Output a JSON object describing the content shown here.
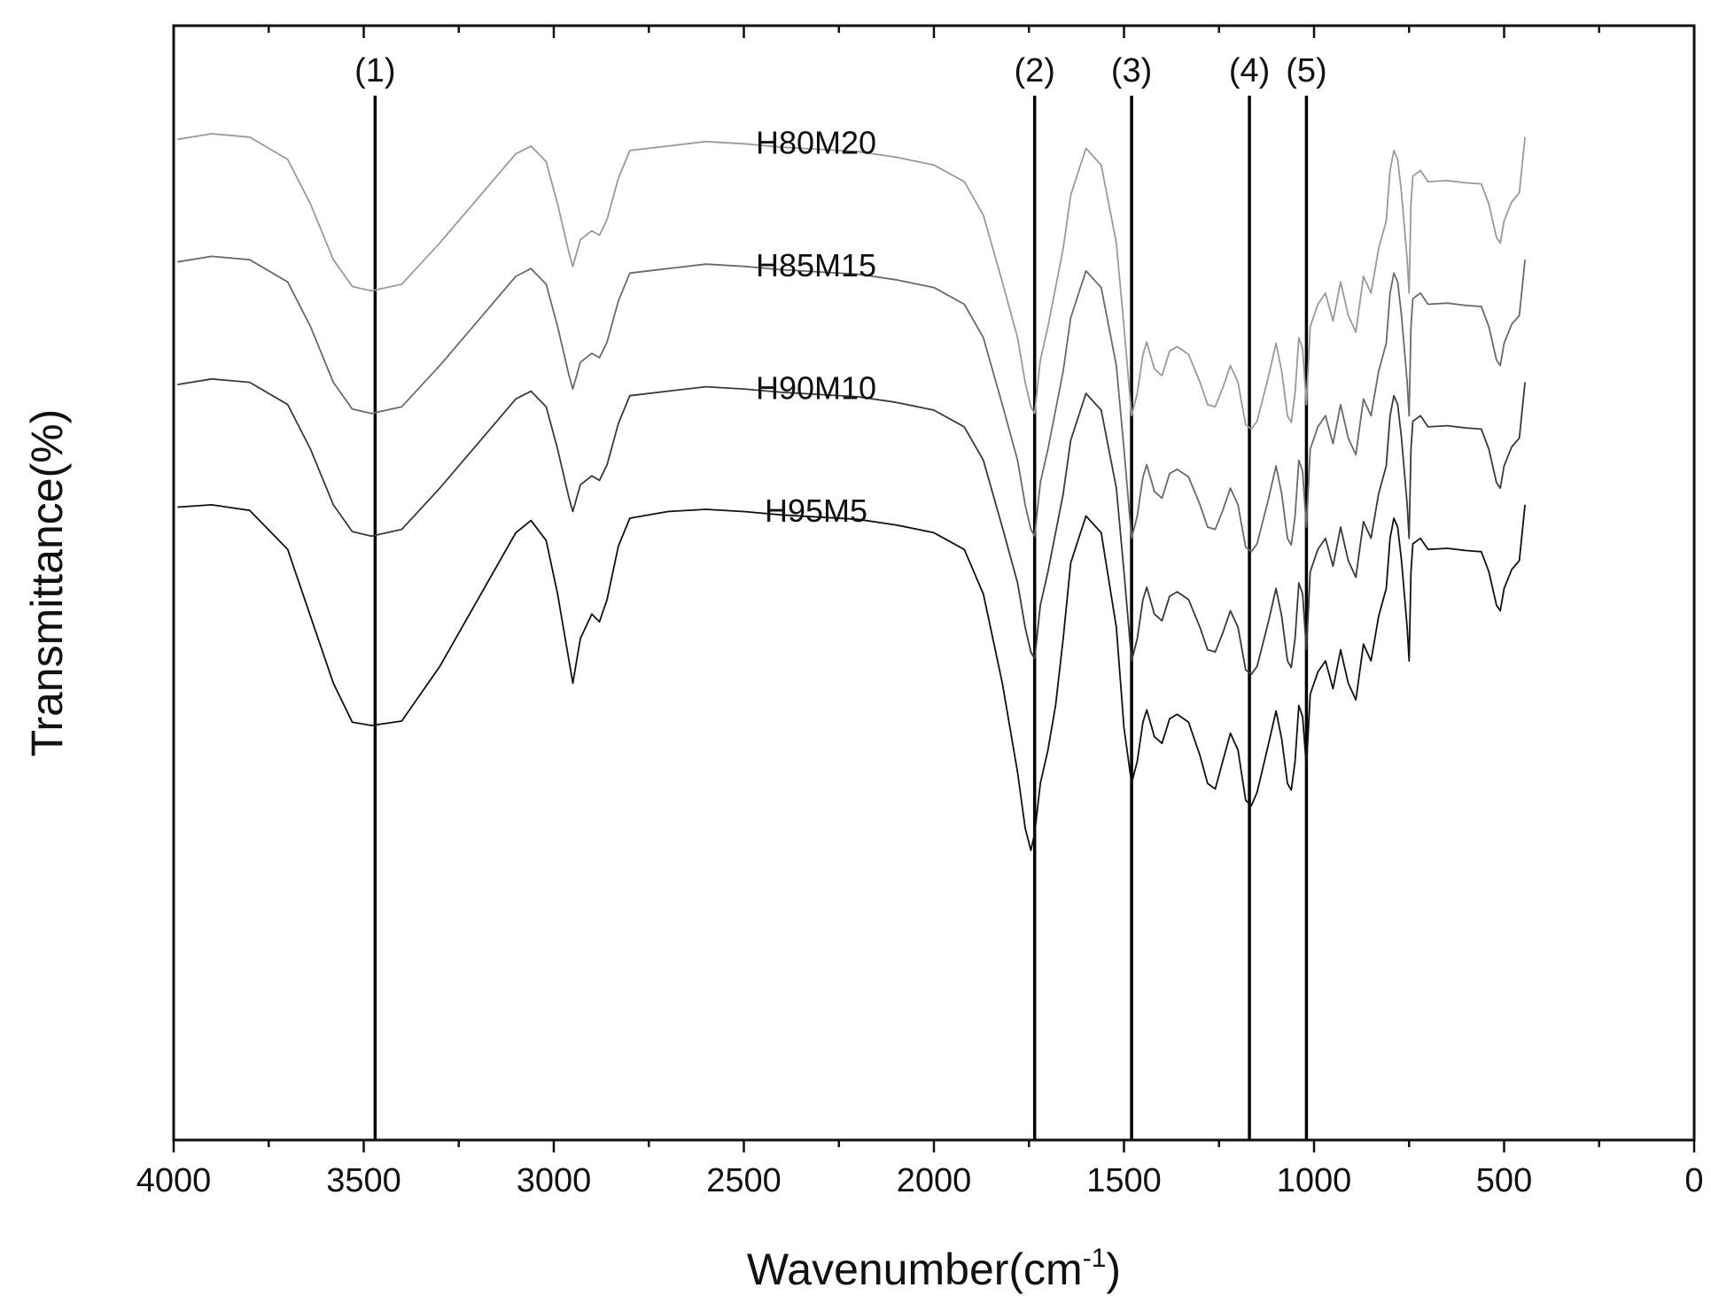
{
  "chart_data": {
    "type": "line",
    "xlabel": "Wavenumber(cm",
    "xlabel_sup": "-1",
    "xlabel_end": ")",
    "ylabel": "Transmittance(%)",
    "xlim": [
      4000,
      0
    ],
    "xticks": [
      4000,
      3500,
      3000,
      2500,
      2000,
      1500,
      1000,
      500,
      0
    ],
    "xtick_labels": [
      "4000",
      "3500",
      "3000",
      "2500",
      "2000",
      "1500",
      "1000",
      "500",
      "0"
    ],
    "ylim": [
      0,
      100
    ],
    "grid": false,
    "peak_markers": [
      {
        "label": "(1)",
        "x": 3470
      },
      {
        "label": "(2)",
        "x": 1735
      },
      {
        "label": "(3)",
        "x": 1480
      },
      {
        "label": "(4)",
        "x": 1170
      },
      {
        "label": "(5)",
        "x": 1020
      }
    ],
    "series": [
      {
        "name": "H80M20",
        "color": "#9a9a9a",
        "offset": 0,
        "x": [
          3990,
          3900,
          3800,
          3700,
          3640,
          3580,
          3530,
          3480,
          3400,
          3300,
          3200,
          3100,
          3060,
          3020,
          2990,
          2960,
          2950,
          2930,
          2900,
          2880,
          2860,
          2830,
          2800,
          2700,
          2600,
          2500,
          2400,
          2300,
          2200,
          2100,
          2000,
          1920,
          1870,
          1820,
          1780,
          1760,
          1745,
          1735,
          1720,
          1700,
          1680,
          1660,
          1640,
          1600,
          1560,
          1520,
          1500,
          1480,
          1465,
          1450,
          1440,
          1420,
          1400,
          1380,
          1360,
          1330,
          1300,
          1280,
          1260,
          1240,
          1220,
          1200,
          1180,
          1165,
          1150,
          1120,
          1100,
          1085,
          1070,
          1060,
          1050,
          1040,
          1030,
          1020,
          1010,
          990,
          970,
          950,
          930,
          910,
          890,
          870,
          850,
          830,
          810,
          800,
          790,
          780,
          770,
          760,
          755,
          750,
          745,
          740,
          720,
          700,
          650,
          600,
          560,
          540,
          520,
          510,
          500,
          480,
          460,
          445
        ],
        "y": [
          89.8,
          90.3,
          90.0,
          88.0,
          84.0,
          79.0,
          76.6,
          76.2,
          76.8,
          80.5,
          84.5,
          88.5,
          89.2,
          87.8,
          84.0,
          79.6,
          78.4,
          80.8,
          81.6,
          81.2,
          82.6,
          86.3,
          88.8,
          89.2,
          89.6,
          89.4,
          89.1,
          88.9,
          88.7,
          88.2,
          87.5,
          86.0,
          83.0,
          77.0,
          72.0,
          68.0,
          65.8,
          65.2,
          70.0,
          73.0,
          76.5,
          80.0,
          84.8,
          89.0,
          87.5,
          80.5,
          73.0,
          65.0,
          67.0,
          70.5,
          71.6,
          69.2,
          68.6,
          70.8,
          71.2,
          70.5,
          68.0,
          66.0,
          65.8,
          67.5,
          69.5,
          68.0,
          64.2,
          63.8,
          64.5,
          68.5,
          71.5,
          69.0,
          65.0,
          64.4,
          67.0,
          72.0,
          71.0,
          66.0,
          73.0,
          75.0,
          76.0,
          73.5,
          77.0,
          74.0,
          72.5,
          77.5,
          76.0,
          80.0,
          82.5,
          87.0,
          88.8,
          88.0,
          85.0,
          81.0,
          79.0,
          76.0,
          84.0,
          86.5,
          87.0,
          86.0,
          86.1,
          85.9,
          85.8,
          84.0,
          81.0,
          80.5,
          82.5,
          84.2,
          85.0,
          90.0
        ]
      },
      {
        "name": "H85M15",
        "color": "#6a6a6a",
        "offset": -11,
        "x": [
          3990,
          3900,
          3800,
          3700,
          3640,
          3580,
          3530,
          3480,
          3400,
          3300,
          3200,
          3100,
          3060,
          3020,
          2990,
          2960,
          2950,
          2930,
          2900,
          2880,
          2860,
          2830,
          2800,
          2700,
          2600,
          2500,
          2400,
          2300,
          2200,
          2100,
          2000,
          1920,
          1870,
          1820,
          1780,
          1760,
          1745,
          1735,
          1720,
          1700,
          1680,
          1660,
          1640,
          1600,
          1560,
          1520,
          1500,
          1480,
          1465,
          1450,
          1440,
          1420,
          1400,
          1380,
          1360,
          1330,
          1300,
          1280,
          1260,
          1240,
          1220,
          1200,
          1180,
          1165,
          1150,
          1120,
          1100,
          1085,
          1070,
          1060,
          1050,
          1040,
          1030,
          1020,
          1010,
          990,
          970,
          950,
          930,
          910,
          890,
          870,
          850,
          830,
          810,
          800,
          790,
          780,
          770,
          760,
          755,
          750,
          745,
          740,
          720,
          700,
          650,
          600,
          560,
          540,
          520,
          510,
          500,
          480,
          460,
          445
        ],
        "y": [
          89.8,
          90.3,
          90.0,
          88.0,
          84.0,
          79.0,
          76.6,
          76.2,
          76.8,
          80.5,
          84.5,
          88.5,
          89.2,
          87.8,
          84.0,
          79.6,
          78.4,
          80.8,
          81.6,
          81.2,
          82.6,
          86.3,
          88.8,
          89.2,
          89.6,
          89.4,
          89.1,
          88.9,
          88.7,
          88.2,
          87.5,
          86.0,
          83.0,
          77.0,
          72.0,
          68.0,
          65.8,
          65.2,
          70.0,
          73.0,
          76.5,
          80.0,
          84.8,
          89.0,
          87.5,
          80.5,
          73.0,
          65.0,
          67.0,
          70.5,
          71.6,
          69.2,
          68.6,
          70.8,
          71.2,
          70.5,
          68.0,
          66.0,
          65.8,
          67.5,
          69.5,
          68.0,
          64.2,
          63.8,
          64.5,
          68.5,
          71.5,
          69.0,
          65.0,
          64.4,
          67.0,
          72.0,
          71.0,
          66.0,
          73.0,
          75.0,
          76.0,
          73.5,
          77.0,
          74.0,
          72.5,
          77.5,
          76.0,
          80.0,
          82.5,
          87.0,
          88.8,
          88.0,
          85.0,
          81.0,
          79.0,
          76.0,
          84.0,
          86.5,
          87.0,
          86.0,
          86.1,
          85.9,
          85.8,
          84.0,
          81.0,
          80.5,
          82.5,
          84.2,
          85.0,
          90.0
        ]
      },
      {
        "name": "H90M10",
        "color": "#3a3a3a",
        "offset": -22,
        "x": [
          3990,
          3900,
          3800,
          3700,
          3640,
          3580,
          3530,
          3480,
          3400,
          3300,
          3200,
          3100,
          3060,
          3020,
          2990,
          2960,
          2950,
          2930,
          2900,
          2880,
          2860,
          2830,
          2800,
          2700,
          2600,
          2500,
          2400,
          2300,
          2200,
          2100,
          2000,
          1920,
          1870,
          1820,
          1780,
          1760,
          1745,
          1735,
          1720,
          1700,
          1680,
          1660,
          1640,
          1600,
          1560,
          1520,
          1500,
          1480,
          1465,
          1450,
          1440,
          1420,
          1400,
          1380,
          1360,
          1330,
          1300,
          1280,
          1260,
          1240,
          1220,
          1200,
          1180,
          1165,
          1150,
          1120,
          1100,
          1085,
          1070,
          1060,
          1050,
          1040,
          1030,
          1020,
          1010,
          990,
          970,
          950,
          930,
          910,
          890,
          870,
          850,
          830,
          810,
          800,
          790,
          780,
          770,
          760,
          755,
          750,
          745,
          740,
          720,
          700,
          650,
          600,
          560,
          540,
          520,
          510,
          500,
          480,
          460,
          445
        ],
        "y": [
          89.8,
          90.3,
          90.0,
          88.0,
          84.0,
          79.0,
          76.6,
          76.2,
          76.8,
          80.5,
          84.5,
          88.5,
          89.2,
          87.8,
          84.0,
          79.6,
          78.4,
          80.8,
          81.6,
          81.2,
          82.6,
          86.3,
          88.8,
          89.2,
          89.6,
          89.4,
          89.1,
          88.9,
          88.7,
          88.2,
          87.5,
          86.0,
          83.0,
          77.0,
          72.0,
          68.0,
          65.8,
          65.2,
          70.0,
          73.0,
          76.5,
          80.0,
          84.8,
          89.0,
          87.5,
          80.5,
          73.0,
          65.0,
          67.0,
          70.5,
          71.6,
          69.2,
          68.6,
          70.8,
          71.2,
          70.5,
          68.0,
          66.0,
          65.8,
          67.5,
          69.5,
          68.0,
          64.2,
          63.8,
          64.5,
          68.5,
          71.5,
          69.0,
          65.0,
          64.4,
          67.0,
          72.0,
          71.0,
          66.0,
          73.0,
          75.0,
          76.0,
          73.5,
          77.0,
          74.0,
          72.5,
          77.5,
          76.0,
          80.0,
          82.5,
          87.0,
          88.8,
          88.0,
          85.0,
          81.0,
          79.0,
          76.0,
          84.0,
          86.5,
          87.0,
          86.0,
          86.1,
          85.9,
          85.8,
          84.0,
          81.0,
          80.5,
          82.5,
          84.2,
          85.0,
          90.0
        ]
      },
      {
        "name": "H95M5",
        "color": "#111111",
        "offset": -33,
        "x": [
          3990,
          3900,
          3800,
          3700,
          3640,
          3580,
          3530,
          3480,
          3400,
          3300,
          3200,
          3100,
          3060,
          3020,
          2990,
          2960,
          2950,
          2930,
          2900,
          2880,
          2860,
          2830,
          2800,
          2700,
          2600,
          2500,
          2400,
          2300,
          2200,
          2100,
          2000,
          1920,
          1870,
          1820,
          1780,
          1760,
          1745,
          1735,
          1720,
          1700,
          1680,
          1660,
          1640,
          1600,
          1560,
          1520,
          1500,
          1480,
          1465,
          1450,
          1440,
          1420,
          1400,
          1380,
          1360,
          1330,
          1300,
          1280,
          1260,
          1240,
          1220,
          1200,
          1180,
          1165,
          1150,
          1120,
          1100,
          1085,
          1070,
          1060,
          1050,
          1040,
          1030,
          1020,
          1010,
          990,
          970,
          950,
          930,
          910,
          890,
          870,
          850,
          830,
          810,
          800,
          790,
          780,
          770,
          760,
          755,
          750,
          745,
          740,
          720,
          700,
          650,
          600,
          560,
          540,
          520,
          510,
          500,
          480,
          460,
          445
        ],
        "y": [
          89.8,
          90.0,
          89.5,
          86.0,
          80.0,
          74.0,
          70.5,
          70.2,
          70.6,
          75.5,
          81.5,
          87.5,
          88.6,
          86.8,
          82.0,
          76.0,
          74.0,
          78.0,
          80.2,
          79.5,
          81.5,
          86.3,
          88.8,
          89.4,
          89.6,
          89.4,
          89.1,
          88.9,
          88.7,
          88.2,
          87.5,
          86.0,
          82.0,
          74.0,
          66.0,
          61.0,
          59.0,
          60.5,
          65.0,
          68.0,
          72.0,
          78.0,
          84.8,
          89.0,
          87.5,
          79.0,
          70.0,
          65.0,
          67.0,
          70.5,
          71.6,
          69.2,
          68.6,
          70.8,
          71.2,
          70.5,
          67.5,
          65.0,
          64.5,
          67.0,
          69.5,
          68.0,
          63.5,
          63.0,
          64.2,
          68.5,
          71.5,
          69.0,
          65.0,
          64.4,
          67.0,
          72.0,
          71.0,
          66.5,
          73.0,
          75.0,
          76.0,
          73.5,
          77.0,
          74.0,
          72.5,
          77.5,
          76.0,
          80.0,
          82.5,
          87.0,
          88.8,
          88.0,
          85.0,
          81.0,
          79.0,
          76.0,
          84.0,
          86.5,
          87.0,
          86.0,
          86.1,
          85.9,
          85.8,
          84.0,
          81.0,
          80.5,
          82.5,
          84.2,
          85.0,
          90.0
        ]
      }
    ],
    "series_labels": [
      {
        "text": "H80M20",
        "x": 2310,
        "y": 88.5
      },
      {
        "text": "H85M15",
        "x": 2310,
        "y": 77.5
      },
      {
        "text": "H90M10",
        "x": 2310,
        "y": 66.5
      },
      {
        "text": "H95M5",
        "x": 2310,
        "y": 55.5
      }
    ]
  }
}
